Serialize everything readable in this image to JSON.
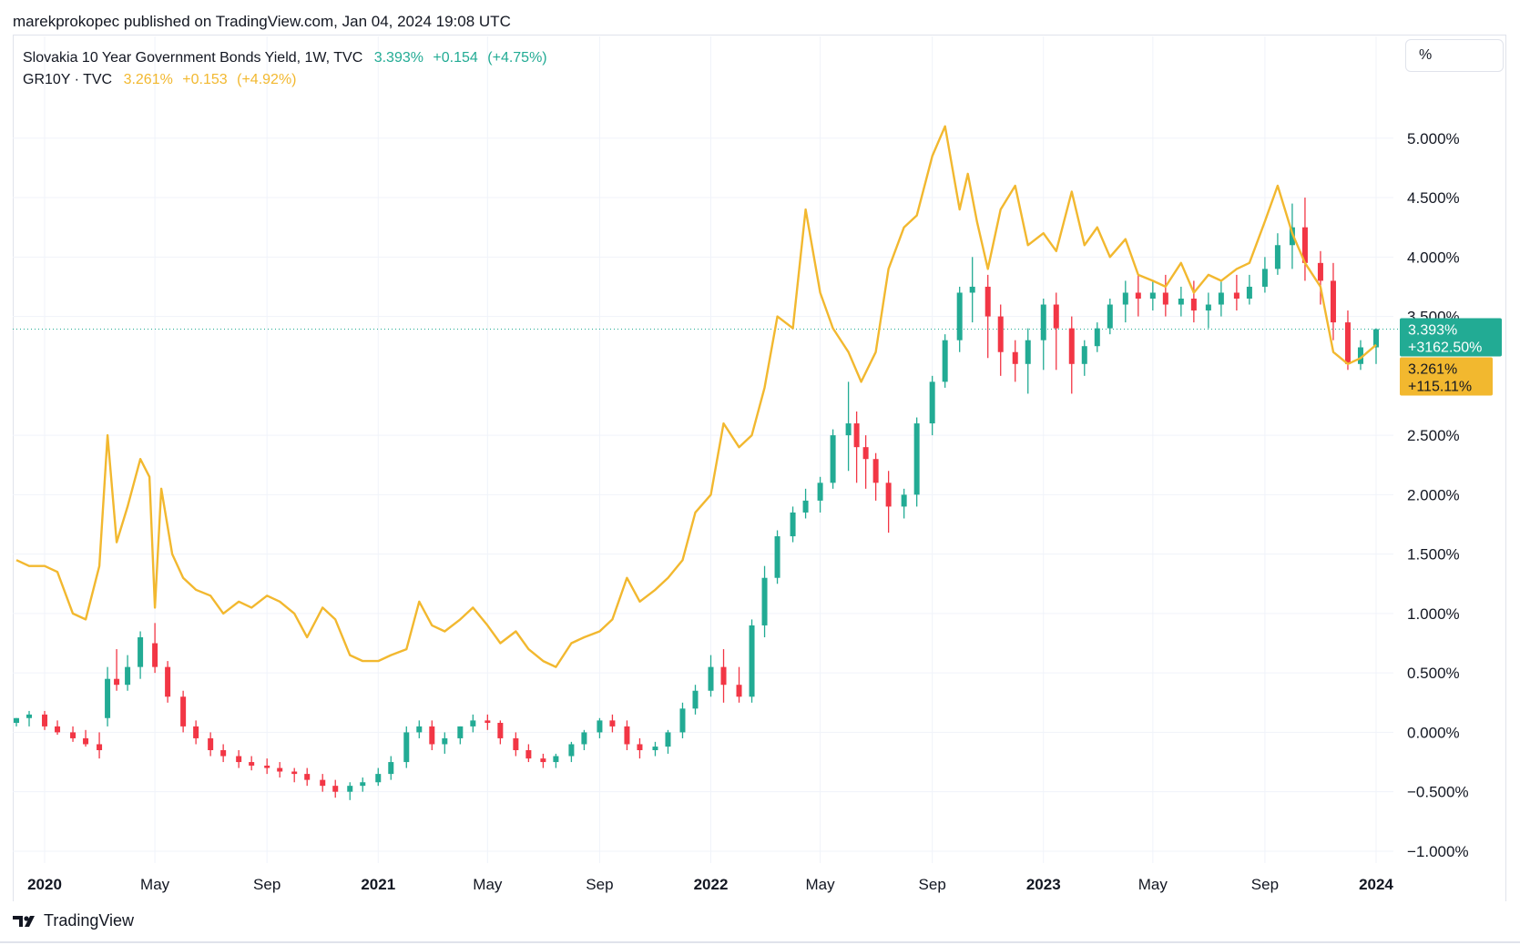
{
  "header": {
    "publish_line": "marekprokopec published on TradingView.com, Jan 04, 2024 19:08 UTC"
  },
  "legend": {
    "series1": {
      "label": "Slovakia 10 Year Government Bonds Yield, 1W, TVC",
      "last": "3.393%",
      "change": "+0.154",
      "change_pct": "(+4.75%)",
      "color": "#22ab94"
    },
    "series2": {
      "label": "GR10Y · TVC",
      "last": "3.261%",
      "change": "+0.153",
      "change_pct": "(+4.92%)",
      "color": "#f2b82f"
    }
  },
  "unit_label": "%",
  "footer": {
    "brand": "TradingView"
  },
  "price_labels": {
    "series1": {
      "value": "3.393%",
      "change": "+3162.50%",
      "color": "#22ab94"
    },
    "series2": {
      "value": "3.261%",
      "change": "+115.11%",
      "color": "#f2b82f"
    }
  },
  "colors": {
    "up": "#22ab94",
    "down": "#f23645",
    "line": "#f2b82f",
    "grid": "#f0f3fa"
  },
  "chart_data": {
    "type": "line",
    "title": "",
    "xlabel": "",
    "ylabel": "",
    "ylim": [
      -1.1,
      5.55
    ],
    "y_ticks": [
      5.0,
      4.5,
      4.0,
      3.5,
      2.5,
      2.0,
      1.5,
      1.0,
      0.5,
      0.0,
      -0.5,
      -1.0
    ],
    "y_tick_labels": [
      "5.000%",
      "4.500%",
      "4.000%",
      "3.500%",
      "2.500%",
      "2.000%",
      "1.500%",
      "1.000%",
      "0.500%",
      "0.000%",
      "−0.500%",
      "−1.000%"
    ],
    "x_ticks": [
      {
        "label": "2020",
        "date": "2020-01-01",
        "bold": true
      },
      {
        "label": "May",
        "date": "2020-05-01",
        "bold": false
      },
      {
        "label": "Sep",
        "date": "2020-09-01",
        "bold": false
      },
      {
        "label": "2021",
        "date": "2021-01-01",
        "bold": true
      },
      {
        "label": "May",
        "date": "2021-05-01",
        "bold": false
      },
      {
        "label": "Sep",
        "date": "2021-09-01",
        "bold": false
      },
      {
        "label": "2022",
        "date": "2022-01-01",
        "bold": true
      },
      {
        "label": "May",
        "date": "2022-05-01",
        "bold": false
      },
      {
        "label": "Sep",
        "date": "2022-09-01",
        "bold": false
      },
      {
        "label": "2023",
        "date": "2023-01-01",
        "bold": true
      },
      {
        "label": "May",
        "date": "2023-05-01",
        "bold": false
      },
      {
        "label": "Sep",
        "date": "2023-09-01",
        "bold": false
      },
      {
        "label": "2024",
        "date": "2024-01-01",
        "bold": true
      }
    ],
    "last_value_line": 3.393,
    "series": [
      {
        "name": "Slovakia 10 Year Government Bonds Yield, 1W, TVC",
        "kind": "candlestick",
        "x": [
          "2019-12-01",
          "2019-12-15",
          "2020-01-01",
          "2020-01-15",
          "2020-02-01",
          "2020-02-15",
          "2020-03-01",
          "2020-03-10",
          "2020-03-20",
          "2020-04-01",
          "2020-04-15",
          "2020-05-01",
          "2020-05-15",
          "2020-06-01",
          "2020-06-15",
          "2020-07-01",
          "2020-07-15",
          "2020-08-01",
          "2020-08-15",
          "2020-09-01",
          "2020-09-15",
          "2020-10-01",
          "2020-10-15",
          "2020-11-01",
          "2020-11-15",
          "2020-12-01",
          "2020-12-15",
          "2021-01-01",
          "2021-01-15",
          "2021-02-01",
          "2021-02-15",
          "2021-03-01",
          "2021-03-15",
          "2021-04-01",
          "2021-04-15",
          "2021-05-01",
          "2021-05-15",
          "2021-06-01",
          "2021-06-15",
          "2021-07-01",
          "2021-07-15",
          "2021-08-01",
          "2021-08-15",
          "2021-09-01",
          "2021-09-15",
          "2021-10-01",
          "2021-10-15",
          "2021-11-01",
          "2021-11-15",
          "2021-12-01",
          "2021-12-15",
          "2022-01-01",
          "2022-01-15",
          "2022-02-01",
          "2022-02-15",
          "2022-03-01",
          "2022-03-15",
          "2022-04-01",
          "2022-04-15",
          "2022-05-01",
          "2022-05-15",
          "2022-06-01",
          "2022-06-10",
          "2022-06-20",
          "2022-07-01",
          "2022-07-15",
          "2022-08-01",
          "2022-08-15",
          "2022-09-01",
          "2022-09-15",
          "2022-10-01",
          "2022-10-15",
          "2022-11-01",
          "2022-11-15",
          "2022-12-01",
          "2022-12-15",
          "2023-01-01",
          "2023-01-15",
          "2023-02-01",
          "2023-02-15",
          "2023-03-01",
          "2023-03-15",
          "2023-04-01",
          "2023-04-15",
          "2023-05-01",
          "2023-05-15",
          "2023-06-01",
          "2023-06-15",
          "2023-07-01",
          "2023-07-15",
          "2023-08-01",
          "2023-08-15",
          "2023-09-01",
          "2023-09-15",
          "2023-10-01",
          "2023-10-15",
          "2023-11-01",
          "2023-11-15",
          "2023-12-01",
          "2023-12-15",
          "2024-01-01"
        ],
        "open": [
          0.08,
          0.12,
          0.15,
          0.05,
          0.0,
          -0.05,
          -0.1,
          0.12,
          0.45,
          0.4,
          0.55,
          0.75,
          0.55,
          0.3,
          0.05,
          -0.05,
          -0.15,
          -0.2,
          -0.25,
          -0.28,
          -0.3,
          -0.33,
          -0.35,
          -0.4,
          -0.45,
          -0.5,
          -0.45,
          -0.42,
          -0.35,
          -0.25,
          0.0,
          0.05,
          -0.1,
          -0.05,
          0.05,
          0.1,
          0.08,
          -0.05,
          -0.15,
          -0.22,
          -0.25,
          -0.2,
          -0.1,
          0.0,
          0.1,
          0.05,
          -0.1,
          -0.15,
          -0.12,
          0.0,
          0.2,
          0.35,
          0.55,
          0.4,
          0.3,
          0.9,
          1.3,
          1.65,
          1.85,
          1.95,
          2.1,
          2.5,
          2.6,
          2.4,
          2.3,
          2.1,
          1.9,
          2.0,
          2.6,
          2.95,
          3.3,
          3.7,
          3.75,
          3.5,
          3.2,
          3.1,
          3.3,
          3.6,
          3.4,
          3.1,
          3.25,
          3.4,
          3.6,
          3.7,
          3.65,
          3.7,
          3.6,
          3.65,
          3.55,
          3.6,
          3.7,
          3.65,
          3.75,
          3.9,
          4.1,
          4.25,
          3.95,
          3.8,
          3.45,
          3.1,
          3.24
        ],
        "high": [
          0.12,
          0.18,
          0.18,
          0.1,
          0.05,
          0.02,
          0.0,
          0.55,
          0.7,
          0.65,
          0.85,
          0.92,
          0.6,
          0.35,
          0.1,
          0.0,
          -0.1,
          -0.15,
          -0.2,
          -0.22,
          -0.25,
          -0.3,
          -0.3,
          -0.35,
          -0.4,
          -0.42,
          -0.38,
          -0.3,
          -0.2,
          0.05,
          0.1,
          0.1,
          0.0,
          0.05,
          0.15,
          0.15,
          0.1,
          0.0,
          -0.1,
          -0.18,
          -0.18,
          -0.08,
          0.02,
          0.12,
          0.15,
          0.1,
          -0.05,
          -0.08,
          0.02,
          0.25,
          0.4,
          0.65,
          0.7,
          0.55,
          0.95,
          1.4,
          1.7,
          1.9,
          2.05,
          2.15,
          2.55,
          2.95,
          2.7,
          2.5,
          2.35,
          2.2,
          2.05,
          2.65,
          3.0,
          3.35,
          3.75,
          4.0,
          3.85,
          3.6,
          3.3,
          3.4,
          3.65,
          3.7,
          3.5,
          3.3,
          3.45,
          3.65,
          3.8,
          3.85,
          3.8,
          3.85,
          3.75,
          3.8,
          3.7,
          3.8,
          3.85,
          3.85,
          4.0,
          4.2,
          4.45,
          4.5,
          4.05,
          3.95,
          3.55,
          3.3,
          3.4
        ],
        "low": [
          0.05,
          0.05,
          0.02,
          -0.02,
          -0.08,
          -0.12,
          -0.22,
          0.05,
          0.35,
          0.35,
          0.45,
          0.5,
          0.25,
          0.0,
          -0.1,
          -0.2,
          -0.25,
          -0.3,
          -0.32,
          -0.35,
          -0.38,
          -0.42,
          -0.45,
          -0.5,
          -0.55,
          -0.57,
          -0.5,
          -0.45,
          -0.4,
          -0.3,
          -0.05,
          -0.15,
          -0.18,
          -0.1,
          0.0,
          0.02,
          -0.1,
          -0.2,
          -0.25,
          -0.3,
          -0.3,
          -0.25,
          -0.15,
          -0.05,
          0.0,
          -0.15,
          -0.22,
          -0.2,
          -0.18,
          -0.05,
          0.15,
          0.3,
          0.25,
          0.25,
          0.25,
          0.8,
          1.25,
          1.6,
          1.8,
          1.85,
          2.05,
          2.2,
          2.1,
          2.05,
          1.95,
          1.68,
          1.8,
          1.9,
          2.5,
          2.9,
          3.2,
          3.45,
          3.15,
          3.0,
          2.95,
          2.85,
          3.05,
          3.05,
          2.85,
          3.0,
          3.2,
          3.35,
          3.45,
          3.5,
          3.55,
          3.5,
          3.5,
          3.45,
          3.4,
          3.5,
          3.55,
          3.6,
          3.7,
          3.85,
          3.9,
          3.8,
          3.6,
          3.3,
          3.05,
          3.05,
          3.1
        ],
        "close": [
          0.12,
          0.15,
          0.05,
          0.0,
          -0.05,
          -0.1,
          -0.15,
          0.45,
          0.4,
          0.55,
          0.8,
          0.55,
          0.3,
          0.05,
          -0.05,
          -0.15,
          -0.2,
          -0.25,
          -0.28,
          -0.3,
          -0.33,
          -0.35,
          -0.4,
          -0.45,
          -0.5,
          -0.45,
          -0.42,
          -0.35,
          -0.25,
          0.0,
          0.05,
          -0.1,
          -0.05,
          0.05,
          0.1,
          0.08,
          -0.05,
          -0.15,
          -0.22,
          -0.25,
          -0.2,
          -0.1,
          0.0,
          0.1,
          0.05,
          -0.1,
          -0.15,
          -0.12,
          0.0,
          0.2,
          0.35,
          0.55,
          0.4,
          0.3,
          0.9,
          1.3,
          1.65,
          1.85,
          1.95,
          2.1,
          2.5,
          2.6,
          2.4,
          2.3,
          2.1,
          1.9,
          2.0,
          2.6,
          2.95,
          3.3,
          3.7,
          3.75,
          3.5,
          3.2,
          3.1,
          3.3,
          3.6,
          3.4,
          3.1,
          3.25,
          3.4,
          3.6,
          3.7,
          3.65,
          3.7,
          3.6,
          3.65,
          3.55,
          3.6,
          3.7,
          3.65,
          3.75,
          3.9,
          4.1,
          4.25,
          3.95,
          3.8,
          3.45,
          3.1,
          3.24,
          3.393
        ]
      },
      {
        "name": "GR10Y · TVC",
        "kind": "line",
        "x": [
          "2019-12-01",
          "2019-12-15",
          "2020-01-01",
          "2020-01-15",
          "2020-02-01",
          "2020-02-15",
          "2020-03-01",
          "2020-03-10",
          "2020-03-20",
          "2020-04-01",
          "2020-04-15",
          "2020-04-25",
          "2020-05-01",
          "2020-05-08",
          "2020-05-20",
          "2020-06-01",
          "2020-06-15",
          "2020-07-01",
          "2020-07-15",
          "2020-08-01",
          "2020-08-15",
          "2020-09-01",
          "2020-09-15",
          "2020-10-01",
          "2020-10-15",
          "2020-11-01",
          "2020-11-15",
          "2020-12-01",
          "2020-12-15",
          "2021-01-01",
          "2021-01-15",
          "2021-02-01",
          "2021-02-15",
          "2021-03-01",
          "2021-03-15",
          "2021-04-01",
          "2021-04-15",
          "2021-05-01",
          "2021-05-15",
          "2021-06-01",
          "2021-06-15",
          "2021-07-01",
          "2021-07-15",
          "2021-08-01",
          "2021-08-15",
          "2021-09-01",
          "2021-09-15",
          "2021-10-01",
          "2021-10-15",
          "2021-11-01",
          "2021-11-15",
          "2021-12-01",
          "2021-12-15",
          "2022-01-01",
          "2022-01-15",
          "2022-02-01",
          "2022-02-15",
          "2022-03-01",
          "2022-03-15",
          "2022-04-01",
          "2022-04-15",
          "2022-05-01",
          "2022-05-15",
          "2022-06-01",
          "2022-06-15",
          "2022-07-01",
          "2022-07-15",
          "2022-08-01",
          "2022-08-15",
          "2022-09-01",
          "2022-09-15",
          "2022-10-01",
          "2022-10-10",
          "2022-10-20",
          "2022-11-01",
          "2022-11-15",
          "2022-12-01",
          "2022-12-15",
          "2023-01-01",
          "2023-01-15",
          "2023-02-01",
          "2023-02-15",
          "2023-03-01",
          "2023-03-15",
          "2023-04-01",
          "2023-04-15",
          "2023-05-01",
          "2023-05-15",
          "2023-06-01",
          "2023-06-15",
          "2023-07-01",
          "2023-07-15",
          "2023-08-01",
          "2023-08-15",
          "2023-09-01",
          "2023-09-15",
          "2023-10-01",
          "2023-10-15",
          "2023-11-01",
          "2023-11-15",
          "2023-12-01",
          "2023-12-15",
          "2024-01-01"
        ],
        "y": [
          1.45,
          1.4,
          1.4,
          1.35,
          1.0,
          0.95,
          1.4,
          2.5,
          1.6,
          1.9,
          2.3,
          2.15,
          1.05,
          2.05,
          1.5,
          1.3,
          1.2,
          1.15,
          1.0,
          1.1,
          1.05,
          1.15,
          1.1,
          1.0,
          0.8,
          1.05,
          0.95,
          0.65,
          0.6,
          0.6,
          0.65,
          0.7,
          1.1,
          0.9,
          0.85,
          0.95,
          1.05,
          0.9,
          0.75,
          0.85,
          0.7,
          0.6,
          0.55,
          0.75,
          0.8,
          0.85,
          0.95,
          1.3,
          1.1,
          1.2,
          1.3,
          1.45,
          1.85,
          2.0,
          2.6,
          2.4,
          2.5,
          2.9,
          3.5,
          3.4,
          4.4,
          3.7,
          3.4,
          3.2,
          2.95,
          3.2,
          3.9,
          4.25,
          4.35,
          4.85,
          5.1,
          4.4,
          4.7,
          4.3,
          3.9,
          4.4,
          4.6,
          4.1,
          4.2,
          4.05,
          4.55,
          4.1,
          4.25,
          4.0,
          4.15,
          3.85,
          3.8,
          3.75,
          3.95,
          3.7,
          3.85,
          3.8,
          3.9,
          3.95,
          4.3,
          4.6,
          4.2,
          3.95,
          3.75,
          3.2,
          3.1,
          3.15,
          3.261
        ]
      }
    ]
  }
}
